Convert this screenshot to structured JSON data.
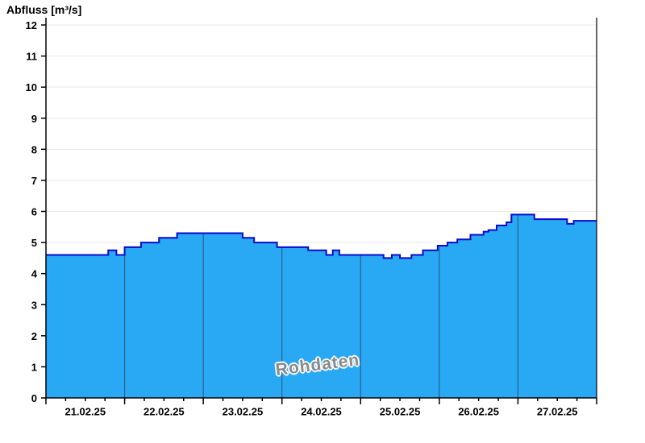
{
  "window": {
    "title": "Abfluss [m³/s]"
  },
  "chart_data": {
    "type": "area",
    "title": "Abfluss [m³/s]",
    "ylabel": "Abfluss [m³/s]",
    "watermark": "Rohdaten",
    "legend": "none",
    "grid": {
      "horizontal": true,
      "day_separators": true
    },
    "ylim": [
      0,
      12
    ],
    "y_ticks": [
      0,
      1,
      2,
      3,
      4,
      5,
      6,
      7,
      8,
      9,
      10,
      11,
      12
    ],
    "x_days": [
      "21.02.25",
      "22.02.25",
      "23.02.25",
      "24.02.25",
      "25.02.25",
      "26.02.25",
      "27.02.25"
    ],
    "hours_per_day": 24,
    "x_domain_hours": [
      0,
      168
    ],
    "minor_tick_interval_hours": 6,
    "series": [
      {
        "name": "Rohdaten",
        "unit": "m³/s",
        "step_points": [
          [
            0,
            4.6
          ],
          [
            19,
            4.75
          ],
          [
            21.5,
            4.6
          ],
          [
            24,
            4.85
          ],
          [
            29,
            5.0
          ],
          [
            34.5,
            5.15
          ],
          [
            40,
            5.3
          ],
          [
            60,
            5.15
          ],
          [
            63.5,
            5.0
          ],
          [
            70.5,
            4.85
          ],
          [
            80,
            4.75
          ],
          [
            85.5,
            4.6
          ],
          [
            87.5,
            4.75
          ],
          [
            89.5,
            4.6
          ],
          [
            103,
            4.5
          ],
          [
            105.5,
            4.6
          ],
          [
            108,
            4.5
          ],
          [
            111.5,
            4.6
          ],
          [
            115,
            4.75
          ],
          [
            119.5,
            4.9
          ],
          [
            122.5,
            5.0
          ],
          [
            125.5,
            5.1
          ],
          [
            129.5,
            5.25
          ],
          [
            133.5,
            5.35
          ],
          [
            135,
            5.4
          ],
          [
            137.5,
            5.55
          ],
          [
            140.5,
            5.65
          ],
          [
            142,
            5.9
          ],
          [
            149,
            5.75
          ],
          [
            159,
            5.6
          ],
          [
            161,
            5.7
          ],
          [
            168,
            5.7
          ]
        ]
      }
    ],
    "colors": {
      "fill": "#29a8f3",
      "line": "#0a0acd",
      "grid_h": "#e9e9e9",
      "day_line": "#29618f",
      "axis": "#000000",
      "watermark_text": "#8a8a8a",
      "watermark_outline": "#ffffff",
      "background": "#ffffff"
    }
  }
}
